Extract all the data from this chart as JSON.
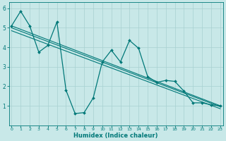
{
  "xlabel": "Humidex (Indice chaleur)",
  "xlim": [
    0,
    23
  ],
  "ylim": [
    0,
    6.3
  ],
  "xticks": [
    0,
    1,
    2,
    3,
    4,
    5,
    6,
    7,
    8,
    9,
    10,
    11,
    12,
    13,
    14,
    15,
    16,
    17,
    18,
    19,
    20,
    21,
    22,
    23
  ],
  "yticks": [
    1,
    2,
    3,
    4,
    5,
    6
  ],
  "background_color": "#c8e8e8",
  "grid_color": "#a8d0d0",
  "line_color": "#007878",
  "main_line": {
    "x": [
      0,
      1,
      2,
      3,
      4,
      5,
      6,
      7,
      8,
      9,
      10,
      11,
      12,
      13,
      14,
      15,
      16,
      17,
      18,
      19,
      20,
      21,
      22,
      23
    ],
    "y": [
      5.1,
      5.85,
      5.1,
      3.75,
      4.1,
      5.3,
      1.8,
      0.6,
      0.65,
      1.4,
      3.25,
      3.85,
      3.25,
      4.35,
      3.95,
      2.5,
      2.2,
      2.3,
      2.25,
      1.75,
      1.15,
      1.15,
      1.05,
      1.0
    ]
  },
  "trend_lines": [
    {
      "x": [
        0,
        23
      ],
      "y": [
        5.1,
        1.0
      ]
    },
    {
      "x": [
        0,
        23
      ],
      "y": [
        5.0,
        0.95
      ]
    },
    {
      "x": [
        0,
        23
      ],
      "y": [
        4.85,
        0.85
      ]
    }
  ]
}
